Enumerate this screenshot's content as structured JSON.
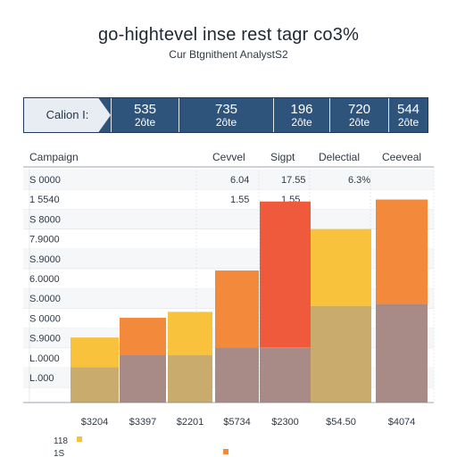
{
  "chart_data": {
    "type": "bar",
    "title": "go-hightevel inse rest tagr co3%",
    "subtitle": "Cur Btgnithent AnalystS2",
    "kpis": {
      "label": "Calion I:",
      "items": [
        {
          "value": "535",
          "sub": "2ôte"
        },
        {
          "value": "735",
          "sub": "2ôte"
        },
        {
          "value": "196",
          "sub": "2ôte"
        },
        {
          "value": "720",
          "sub": "2ôte"
        },
        {
          "value": "544",
          "sub": "2ôte"
        }
      ]
    },
    "headers": [
      "Campaign",
      "Cevvel",
      "Sigpt",
      "Delectial",
      "Ceeveal"
    ],
    "y_tick_labels": [
      "S 0000",
      "1 5540",
      "S 8000",
      "7.9000",
      "S.9000",
      "6.0000",
      "S.0000",
      "S 0000",
      "S.9000",
      "L.0000",
      "L.000"
    ],
    "value_labels": [
      {
        "text": "6.04",
        "column": 1,
        "row": 0
      },
      {
        "text": "17.55",
        "column": 2,
        "row": 0
      },
      {
        "text": "6.3%",
        "column": 3,
        "row": 0
      },
      {
        "text": "1.55",
        "column": 1,
        "row": 1
      },
      {
        "text": "1.55",
        "column": 2,
        "row": 1
      }
    ],
    "categories": [
      "$3204",
      "$3397",
      "$2201",
      "$5734",
      "$2300",
      "$54.50",
      "$4074"
    ],
    "series": [
      {
        "values": [
          1.8,
          2.4,
          2.4,
          2.8,
          2.8,
          4.9,
          5.0
        ]
      },
      {
        "values": [
          3.3,
          4.3,
          4.6,
          6.7,
          10.2,
          8.8,
          10.3
        ]
      }
    ],
    "ylim": [
      0,
      12
    ],
    "grid": true,
    "legend_rows": [
      {
        "label": "118",
        "markers": [
          1,
          0,
          0
        ]
      },
      {
        "label": "1S",
        "markers": [
          0,
          1,
          0
        ]
      }
    ],
    "colors": {
      "navy": "#2f547c",
      "light_blue": "#e7edf3",
      "gold": "#f8c23c",
      "orange": "#f38a3b",
      "red": "#ef5a3d",
      "mauve": "#a88b86",
      "olive": "#c9ab6d",
      "text": "#2f3944"
    }
  }
}
